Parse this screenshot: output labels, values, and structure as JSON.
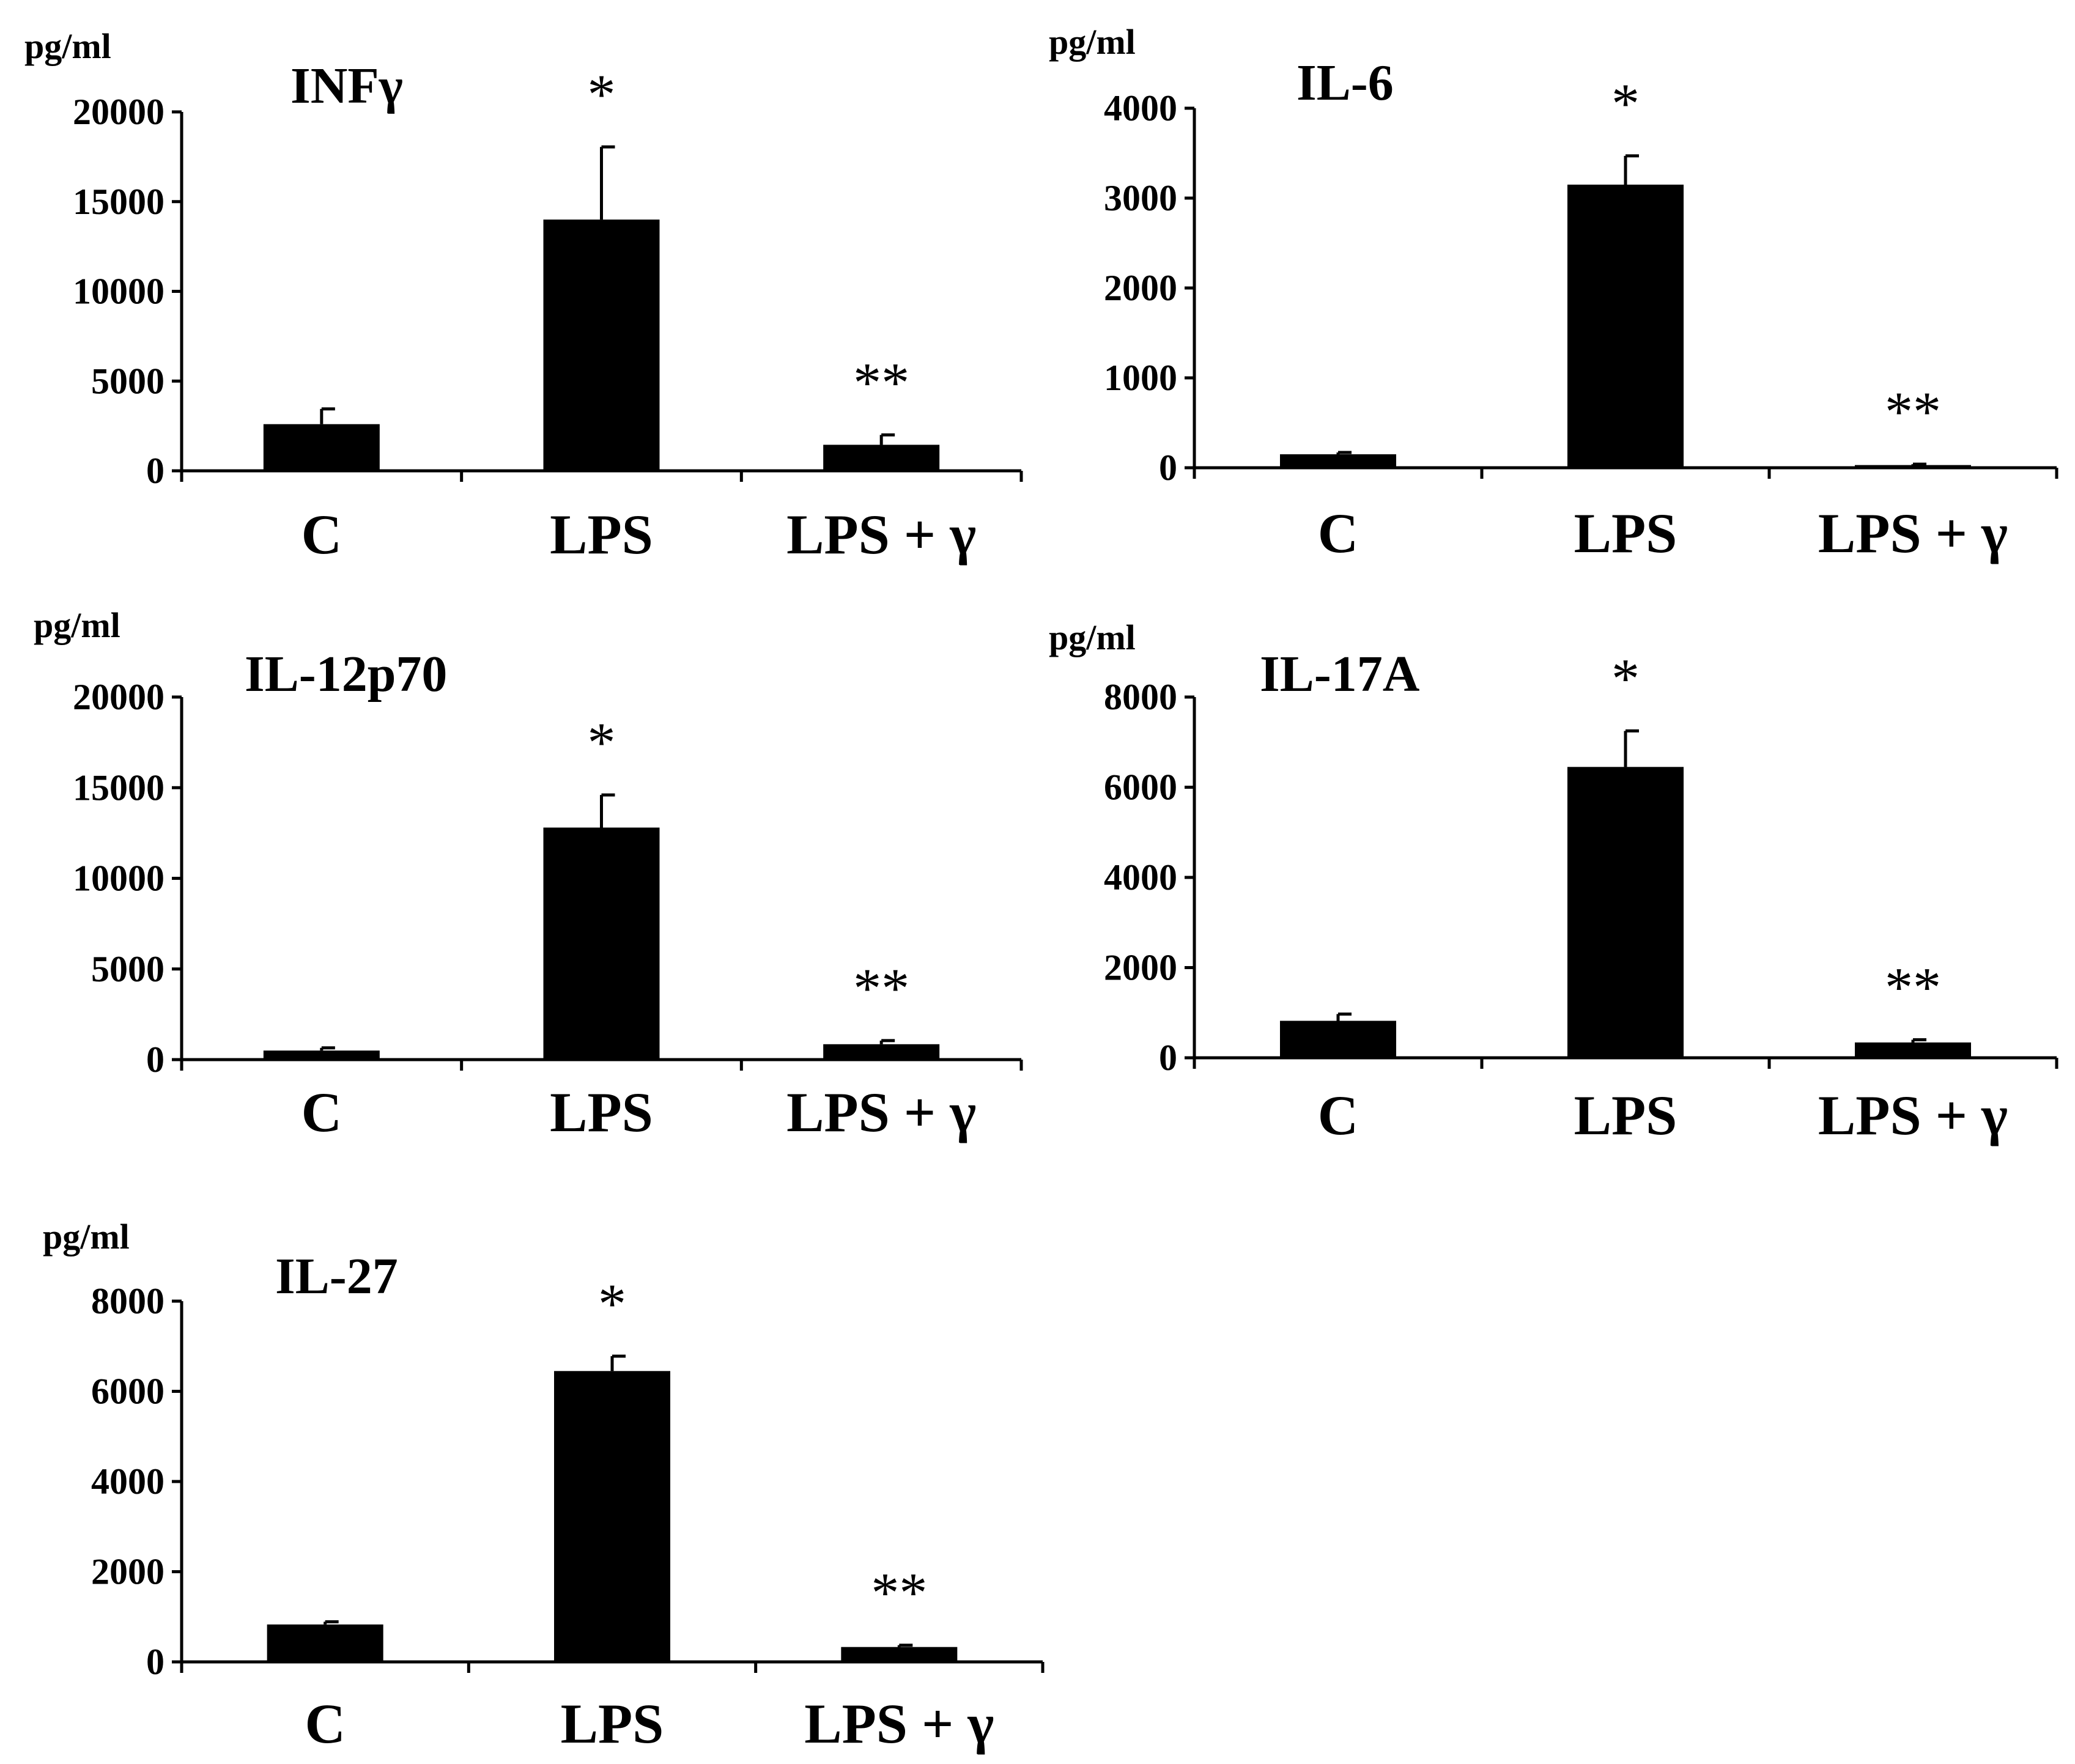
{
  "figure": {
    "panel_count": 5
  },
  "chart_data": [
    {
      "type": "bar",
      "title": "INFγ",
      "ylabel": "pg/ml",
      "xlabel": "",
      "categories": [
        "C",
        "LPS",
        "LPS + γ"
      ],
      "values": [
        2600,
        14000,
        1450
      ],
      "errors": [
        850,
        4050,
        550
      ],
      "significance": [
        "",
        "*",
        "**"
      ],
      "yticks": [
        "0",
        "5000",
        "10000",
        "15000",
        "20000"
      ],
      "ylim": [
        0,
        20000
      ],
      "color": "#000000"
    },
    {
      "type": "bar",
      "title": "IL-6",
      "ylabel": "pg/ml",
      "xlabel": "",
      "categories": [
        "C",
        "LPS",
        "LPS + γ"
      ],
      "values": [
        150,
        3150,
        30
      ],
      "errors": [
        20,
        320,
        10
      ],
      "significance": [
        "",
        "*",
        "**"
      ],
      "yticks": [
        "0",
        "1000",
        "2000",
        "3000",
        "4000"
      ],
      "ylim": [
        0,
        4000
      ],
      "color": "#000000"
    },
    {
      "type": "bar",
      "title": "IL-12p70",
      "ylabel": "pg/ml",
      "xlabel": "",
      "categories": [
        "C",
        "LPS",
        "LPS + γ"
      ],
      "values": [
        500,
        12800,
        850
      ],
      "errors": [
        150,
        1800,
        200
      ],
      "significance": [
        "",
        "*",
        "**"
      ],
      "yticks": [
        "0",
        "5000",
        "10000",
        "15000",
        "20000"
      ],
      "ylim": [
        0,
        20000
      ],
      "color": "#000000"
    },
    {
      "type": "bar",
      "title": "IL-17A",
      "ylabel": "pg/ml",
      "xlabel": "",
      "categories": [
        "C",
        "LPS",
        "LPS + γ"
      ],
      "values": [
        820,
        6450,
        340
      ],
      "errors": [
        150,
        800,
        60
      ],
      "significance": [
        "",
        "*",
        "**"
      ],
      "yticks": [
        "0",
        "2000",
        "4000",
        "6000",
        "8000"
      ],
      "ylim": [
        0,
        8000
      ],
      "color": "#000000"
    },
    {
      "type": "bar",
      "title": "IL-27",
      "ylabel": "pg/ml",
      "xlabel": "",
      "categories": [
        "C",
        "LPS",
        "LPS + γ"
      ],
      "values": [
        830,
        6450,
        330
      ],
      "errors": [
        60,
        330,
        40
      ],
      "significance": [
        "",
        "*",
        "**"
      ],
      "yticks": [
        "0",
        "2000",
        "4000",
        "6000",
        "8000"
      ],
      "ylim": [
        0,
        8000
      ],
      "color": "#000000"
    }
  ]
}
